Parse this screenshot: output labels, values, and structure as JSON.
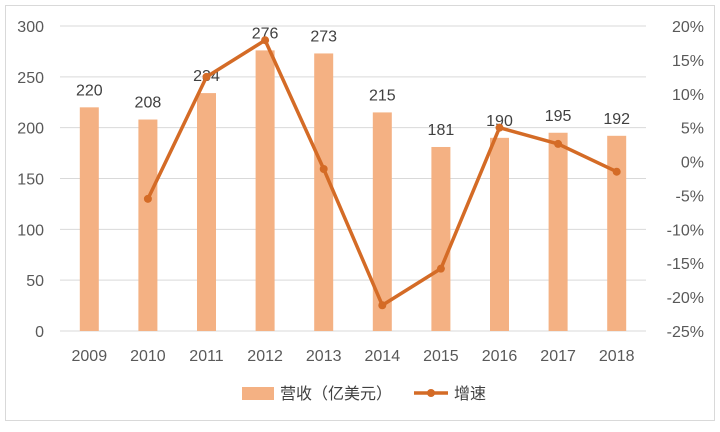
{
  "chart_data": {
    "type": "bar+line",
    "categories": [
      "2009",
      "2010",
      "2011",
      "2012",
      "2013",
      "2014",
      "2015",
      "2016",
      "2017",
      "2018"
    ],
    "series": [
      {
        "name": "营收（亿美元）",
        "type": "bar",
        "axis": "left",
        "color": "#F4B183",
        "values": [
          220,
          208,
          234,
          276,
          273,
          215,
          181,
          190,
          195,
          192
        ]
      },
      {
        "name": "增速",
        "type": "line",
        "axis": "right",
        "color": "#D46B26",
        "values": [
          null,
          -5.5,
          12.5,
          17.9,
          -1.1,
          -21.2,
          -15.8,
          5.0,
          2.6,
          -1.5
        ]
      }
    ],
    "left_axis": {
      "ylim": [
        0,
        300
      ],
      "ticks": [
        "0",
        "50",
        "100",
        "150",
        "200",
        "250",
        "300"
      ]
    },
    "right_axis": {
      "ylim": [
        -25,
        20
      ],
      "ticks": [
        "-25%",
        "-20%",
        "-15%",
        "-10%",
        "-5%",
        "0%",
        "5%",
        "10%",
        "15%",
        "20%"
      ]
    },
    "grid": true,
    "legend": "bottom"
  }
}
